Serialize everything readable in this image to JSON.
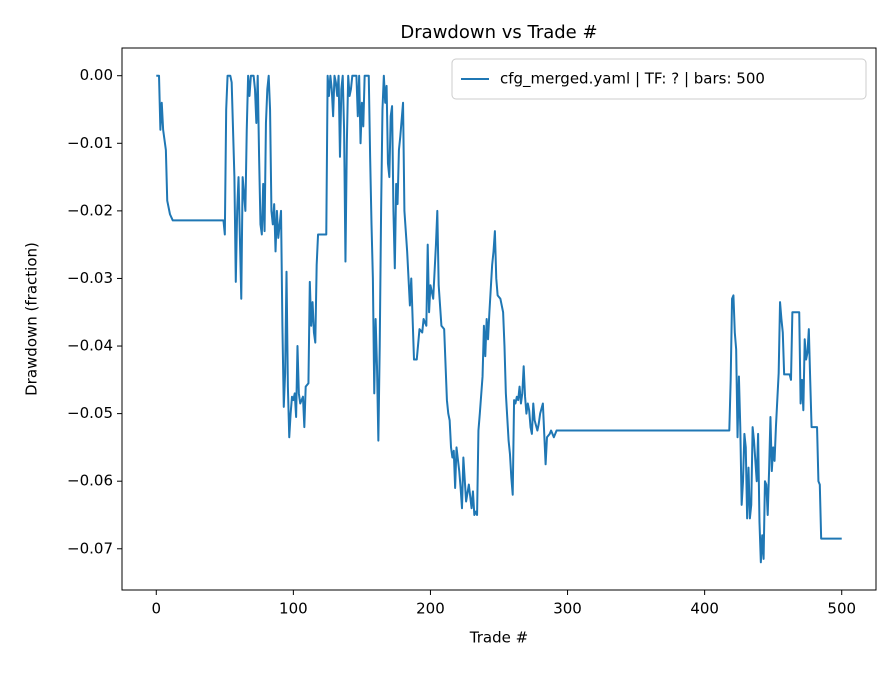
{
  "chart_data": {
    "type": "line",
    "title": "Drawdown vs Trade #",
    "x_label": "Trade #",
    "y_label": "Drawdown (fraction)",
    "legend": "upper right",
    "grid": false,
    "xlim": [
      -25,
      525
    ],
    "ylim": [
      -0.0761,
      0.0041
    ],
    "xticks": [
      0,
      100,
      200,
      300,
      400,
      500
    ],
    "yticks": [
      {
        "value": 0,
        "label": "0.00"
      },
      {
        "value": -0.01,
        "label": "−0.01"
      },
      {
        "value": -0.02,
        "label": "−0.02"
      },
      {
        "value": -0.03,
        "label": "−0.03"
      },
      {
        "value": -0.04,
        "label": "−0.04"
      },
      {
        "value": -0.05,
        "label": "−0.05"
      },
      {
        "value": -0.06,
        "label": "−0.06"
      },
      {
        "value": -0.07,
        "label": "−0.07"
      }
    ],
    "x": [
      0,
      2,
      3,
      4,
      5,
      7,
      8,
      10,
      12,
      49,
      50,
      51,
      52,
      54,
      55,
      57,
      58,
      59,
      60,
      62,
      63,
      65,
      66,
      67,
      68,
      69,
      71,
      72,
      73,
      74,
      75,
      76,
      77,
      78,
      79,
      80,
      81,
      82,
      83,
      84,
      85,
      86,
      87,
      88,
      89,
      91,
      92,
      93,
      94,
      95,
      96,
      97,
      98,
      99,
      100,
      101,
      102,
      103,
      104,
      105,
      107,
      108,
      109,
      111,
      112,
      113,
      114,
      115,
      116,
      117,
      118,
      124,
      125,
      126,
      127,
      128,
      129,
      130,
      131,
      132,
      133,
      134,
      135,
      136,
      137,
      138,
      139,
      140,
      141,
      142,
      143,
      146,
      147,
      148,
      149,
      150,
      151,
      152,
      155,
      156,
      157,
      158,
      159,
      160,
      161,
      162,
      163,
      164,
      165,
      166,
      167,
      168,
      169,
      170,
      171,
      172,
      173,
      174,
      175,
      176,
      177,
      178,
      180,
      181,
      183,
      185,
      186,
      188,
      190,
      192,
      194,
      195,
      197,
      198,
      199,
      200,
      202,
      204,
      205,
      206,
      208,
      210,
      212,
      213,
      214,
      215,
      216,
      217,
      218,
      219,
      221,
      222,
      223,
      224,
      226,
      228,
      230,
      231,
      232,
      233,
      234,
      235,
      236,
      238,
      239,
      240,
      241,
      242,
      243,
      245,
      246,
      247,
      248,
      249,
      251,
      253,
      254,
      255,
      257,
      258,
      259,
      260,
      261,
      262,
      263,
      264,
      265,
      266,
      267,
      268,
      269,
      270,
      271,
      272,
      273,
      274,
      275,
      276,
      278,
      279,
      280,
      282,
      283,
      284,
      285,
      287,
      288,
      290,
      292,
      418,
      419,
      420,
      421,
      422,
      423,
      424,
      425,
      426,
      427,
      428,
      429,
      430,
      431,
      432,
      433,
      434,
      435,
      436,
      437,
      438,
      439,
      440,
      441,
      442,
      443,
      444,
      445,
      446,
      447,
      448,
      449,
      450,
      451,
      452,
      453,
      454,
      455,
      456,
      457,
      458,
      462,
      463,
      464,
      469,
      470,
      471,
      472,
      473,
      474,
      475,
      476,
      477,
      478,
      482,
      483,
      484,
      485,
      500
    ],
    "series": [
      {
        "name": "cfg_merged.yaml | TF: ? | bars: 500",
        "color": "#1f77b4",
        "values": [
          0,
          0,
          -0.008,
          -0.004,
          -0.008,
          -0.011,
          -0.0185,
          -0.0205,
          -0.0214,
          -0.0214,
          -0.0235,
          -0.005,
          0,
          0,
          -0.001,
          -0.015,
          -0.0305,
          -0.02,
          -0.015,
          -0.033,
          -0.015,
          -0.02,
          -0.008,
          0,
          -0.003,
          0,
          0,
          -0.002,
          -0.007,
          0,
          -0.012,
          -0.022,
          -0.0235,
          -0.016,
          -0.023,
          -0.007,
          -0.002,
          0,
          -0.005,
          -0.02,
          -0.022,
          -0.019,
          -0.026,
          -0.02,
          -0.024,
          -0.02,
          -0.037,
          -0.049,
          -0.044,
          -0.029,
          -0.046,
          -0.0535,
          -0.05,
          -0.0475,
          -0.048,
          -0.047,
          -0.0505,
          -0.04,
          -0.047,
          -0.0485,
          -0.0475,
          -0.052,
          -0.046,
          -0.0455,
          -0.0305,
          -0.037,
          -0.0335,
          -0.038,
          -0.0395,
          -0.028,
          -0.0235,
          -0.0235,
          0,
          -0.003,
          0,
          -0.002,
          -0.006,
          0,
          -0.001,
          -0.003,
          0,
          -0.012,
          -0.002,
          0,
          -0.008,
          -0.0275,
          -0.01,
          0,
          -0.003,
          -0.002,
          0,
          0,
          -0.006,
          0,
          -0.01,
          -0.004,
          -0.0075,
          0,
          0,
          -0.012,
          -0.022,
          -0.03,
          -0.047,
          -0.036,
          -0.043,
          -0.054,
          -0.04,
          -0.02,
          -0.005,
          0,
          -0.004,
          -0.0015,
          -0.013,
          -0.015,
          -0.006,
          -0.0045,
          -0.02,
          -0.0285,
          -0.016,
          -0.019,
          -0.011,
          -0.009,
          -0.004,
          -0.02,
          -0.026,
          -0.034,
          -0.03,
          -0.042,
          -0.042,
          -0.0375,
          -0.038,
          -0.036,
          -0.037,
          -0.025,
          -0.035,
          -0.031,
          -0.033,
          -0.025,
          -0.02,
          -0.031,
          -0.037,
          -0.0375,
          -0.048,
          -0.05,
          -0.051,
          -0.055,
          -0.0565,
          -0.0555,
          -0.061,
          -0.055,
          -0.0585,
          -0.061,
          -0.064,
          -0.0565,
          -0.063,
          -0.0605,
          -0.064,
          -0.0615,
          -0.065,
          -0.0645,
          -0.065,
          -0.0525,
          -0.05,
          -0.0445,
          -0.037,
          -0.0415,
          -0.036,
          -0.039,
          -0.035,
          -0.028,
          -0.026,
          -0.023,
          -0.03,
          -0.0325,
          -0.033,
          -0.035,
          -0.04,
          -0.047,
          -0.054,
          -0.056,
          -0.0595,
          -0.062,
          -0.048,
          -0.0485,
          -0.0475,
          -0.048,
          -0.046,
          -0.0485,
          -0.047,
          -0.043,
          -0.0475,
          -0.05,
          -0.0485,
          -0.0495,
          -0.052,
          -0.053,
          -0.0485,
          -0.051,
          -0.0525,
          -0.0515,
          -0.05,
          -0.0485,
          -0.053,
          -0.0575,
          -0.0535,
          -0.053,
          -0.0525,
          -0.0535,
          -0.0525,
          -0.0525,
          -0.045,
          -0.033,
          -0.0325,
          -0.038,
          -0.0405,
          -0.0535,
          -0.0445,
          -0.052,
          -0.0635,
          -0.06,
          -0.053,
          -0.055,
          -0.0655,
          -0.058,
          -0.0655,
          -0.0635,
          -0.052,
          -0.054,
          -0.057,
          -0.06,
          -0.053,
          -0.066,
          -0.072,
          -0.068,
          -0.0715,
          -0.06,
          -0.0605,
          -0.065,
          -0.0585,
          -0.0505,
          -0.0585,
          -0.055,
          -0.057,
          -0.052,
          -0.048,
          -0.044,
          -0.0335,
          -0.036,
          -0.038,
          -0.0442,
          -0.0442,
          -0.045,
          -0.035,
          -0.035,
          -0.0485,
          -0.045,
          -0.0495,
          -0.039,
          -0.042,
          -0.041,
          -0.0375,
          -0.045,
          -0.052,
          -0.052,
          -0.06,
          -0.0605,
          -0.0685,
          -0.0685
        ]
      }
    ]
  }
}
